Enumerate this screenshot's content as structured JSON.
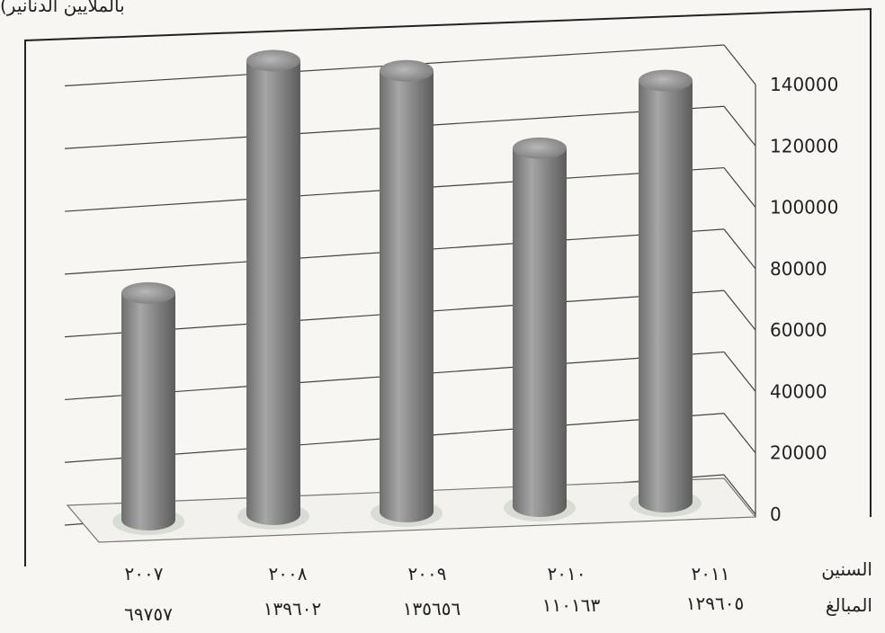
{
  "header_fragment": "بالملايين الدنانير)",
  "chart_data": {
    "type": "bar",
    "style": "3d-cylinder",
    "categories": [
      "٢٠٠٧",
      "٢٠٠٨",
      "٢٠٠٩",
      "٢٠١٠",
      "٢٠١١"
    ],
    "values": [
      69757,
      139602,
      135656,
      110163,
      129605
    ],
    "value_labels": [
      "٦٩٧٥٧",
      "١٣٩٦٠٢",
      "١٣٥٦٥٦",
      "١١٠١٦٣",
      "١٢٩٦٠٥"
    ],
    "y_ticks": [
      0,
      20000,
      40000,
      60000,
      80000,
      100000,
      120000,
      140000
    ],
    "ylim": [
      0,
      140000
    ],
    "grid": true,
    "bar_color": "#8a8a8a",
    "table_row_labels": {
      "years": "السنين",
      "amounts": "المبالغ"
    }
  }
}
